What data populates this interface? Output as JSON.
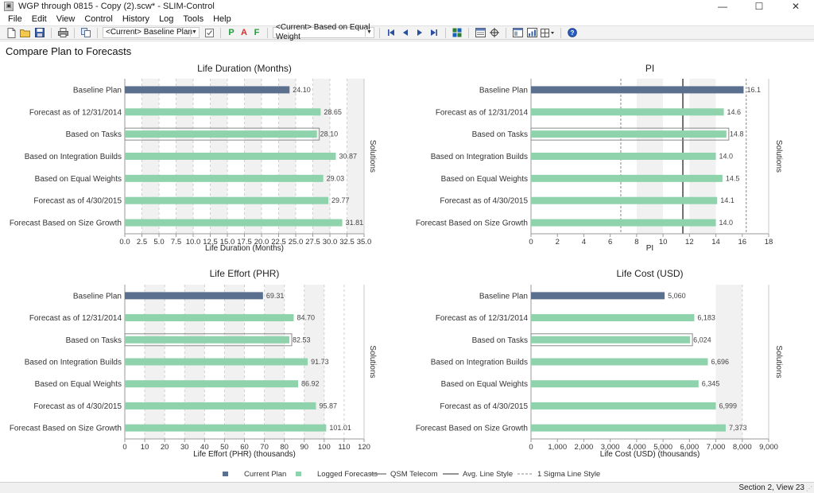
{
  "window": {
    "title": "WGP through 0815 - Copy (2).scw* - SLIM-Control",
    "minimize_glyph": "—",
    "maximize_glyph": "☐",
    "close_glyph": "✕"
  },
  "menu": [
    "File",
    "Edit",
    "View",
    "Control",
    "History",
    "Log",
    "Tools",
    "Help"
  ],
  "toolbar": {
    "baseline_select": "<Current>  Baseline Plan",
    "compare_select": "<Current>  Based on Equal Weight",
    "letters": [
      {
        "text": "P",
        "color": "#1f9e3a"
      },
      {
        "text": "A",
        "color": "#d32f2f"
      },
      {
        "text": "F",
        "color": "#1f9e3a"
      }
    ]
  },
  "page_title": "Compare Plan to Forecasts",
  "side_label": "Solutions",
  "legend": [
    {
      "label": "Current Plan",
      "kind": "square",
      "color": "#5b6f8f"
    },
    {
      "label": "Logged Forecasts",
      "kind": "square",
      "color": "#8fd3ad"
    },
    {
      "label": "QSM Telecom",
      "kind": "line",
      "color": "#8a8a8a"
    },
    {
      "label": "Avg. Line Style",
      "kind": "line",
      "color": "#707070"
    },
    {
      "label": "1 Sigma Line Style",
      "kind": "dash",
      "color": "#888888"
    }
  ],
  "colors": {
    "current_plan": "#5b6f8f",
    "logged_forecast": "#8fd3ad",
    "highlight_border": "#8a8a8a"
  },
  "chart_data": [
    {
      "type": "bar",
      "orientation": "horizontal",
      "title": "Life Duration (Months)",
      "xlabel": "Life Duration (Months)",
      "categories": [
        "Baseline Plan",
        "Forecast as of 12/31/2014",
        "Based on Tasks",
        "Based on Integration Builds",
        "Based on Equal Weights",
        "Forecast as of 4/30/2015",
        "Forecast Based on Size Growth"
      ],
      "values": [
        24.1,
        28.65,
        28.1,
        30.87,
        29.03,
        29.77,
        31.81
      ],
      "value_labels": [
        "24.10",
        "28.65",
        "28.10",
        "30.87",
        "29.03",
        "29.77",
        "31.81"
      ],
      "xlim": [
        0,
        35
      ],
      "ticks": [
        0,
        2.5,
        5,
        7.5,
        10,
        12.5,
        15,
        17.5,
        20,
        22.5,
        25,
        27.5,
        30,
        32.5,
        35
      ],
      "tick_labels": [
        "0.0",
        "2.5",
        "5.0",
        "7.5",
        "10.0",
        "12.5",
        "15.0",
        "17.5",
        "20.0",
        "22.5",
        "25.0",
        "27.5",
        "30.0",
        "32.5",
        "35.0"
      ],
      "current_plan_index": 0,
      "highlight_index": 2,
      "avg_line": null,
      "sigma_lines": [],
      "shade_bands": [
        [
          2.5,
          5
        ],
        [
          7.5,
          10
        ],
        [
          12.5,
          15
        ],
        [
          17.5,
          20
        ],
        [
          22.5,
          25
        ],
        [
          27.5,
          30
        ],
        [
          32.5,
          35
        ]
      ],
      "dash_lines": [
        2.5,
        5,
        7.5,
        10,
        12.5,
        15,
        17.5,
        20,
        22.5,
        25,
        27.5,
        30,
        32.5
      ]
    },
    {
      "type": "bar",
      "orientation": "horizontal",
      "title": "PI",
      "xlabel": "PI",
      "categories": [
        "Baseline Plan",
        "Forecast as of 12/31/2014",
        "Based on Tasks",
        "Based on Integration Builds",
        "Based on Equal Weights",
        "Forecast as of 4/30/2015",
        "Forecast Based on Size Growth"
      ],
      "values": [
        16.1,
        14.6,
        14.8,
        14.0,
        14.5,
        14.1,
        14.0
      ],
      "value_labels": [
        "16.1",
        "14.6",
        "14.8",
        "14.0",
        "14.5",
        "14.1",
        "14.0"
      ],
      "xlim": [
        0,
        18
      ],
      "ticks": [
        0,
        2,
        4,
        6,
        8,
        10,
        12,
        14,
        16,
        18
      ],
      "tick_labels": [
        "0",
        "2",
        "4",
        "6",
        "8",
        "10",
        "12",
        "14",
        "16",
        "18"
      ],
      "current_plan_index": 0,
      "highlight_index": 2,
      "avg_line": 11.5,
      "sigma_lines": [
        6.8,
        16.3
      ],
      "shade_bands": [
        [
          8,
          10
        ],
        [
          12,
          14
        ]
      ],
      "dash_lines": []
    },
    {
      "type": "bar",
      "orientation": "horizontal",
      "title": "Life Effort (PHR)",
      "xlabel": "Life Effort (PHR) (thousands)",
      "categories": [
        "Baseline Plan",
        "Forecast as of 12/31/2014",
        "Based on Tasks",
        "Based on Integration Builds",
        "Based on Equal Weights",
        "Forecast as of 4/30/2015",
        "Forecast Based on Size Growth"
      ],
      "values": [
        69.31,
        84.7,
        82.53,
        91.73,
        86.92,
        95.87,
        101.01
      ],
      "value_labels": [
        "69.31",
        "84.70",
        "82.53",
        "91.73",
        "86.92",
        "95.87",
        "101.01"
      ],
      "xlim": [
        0,
        120
      ],
      "ticks": [
        0,
        10,
        20,
        30,
        40,
        50,
        60,
        70,
        80,
        90,
        100,
        110,
        120
      ],
      "tick_labels": [
        "0",
        "10",
        "20",
        "30",
        "40",
        "50",
        "60",
        "70",
        "80",
        "90",
        "100",
        "110",
        "120"
      ],
      "current_plan_index": 0,
      "highlight_index": 2,
      "avg_line": null,
      "sigma_lines": [],
      "shade_bands": [
        [
          10,
          20
        ],
        [
          30,
          40
        ],
        [
          50,
          60
        ],
        [
          70,
          80
        ],
        [
          90,
          100
        ]
      ],
      "dash_lines": [
        10,
        20,
        30,
        40,
        50,
        60,
        70,
        80,
        90,
        100,
        110
      ]
    },
    {
      "type": "bar",
      "orientation": "horizontal",
      "title": "Life Cost (USD)",
      "xlabel": "Life Cost (USD) (thousands)",
      "categories": [
        "Baseline Plan",
        "Forecast as of 12/31/2014",
        "Based on Tasks",
        "Based on Integration Builds",
        "Based on Equal Weights",
        "Forecast as of 4/30/2015",
        "Forecast Based on Size Growth"
      ],
      "values": [
        5060,
        6183,
        6024,
        6696,
        6345,
        6999,
        7373
      ],
      "value_labels": [
        "5,060",
        "6,183",
        "6,024",
        "6,696",
        "6,345",
        "6,999",
        "7,373"
      ],
      "xlim": [
        0,
        9000
      ],
      "ticks": [
        0,
        1000,
        2000,
        3000,
        4000,
        5000,
        6000,
        7000,
        8000,
        9000
      ],
      "tick_labels": [
        "0",
        "1,000",
        "2,000",
        "3,000",
        "4,000",
        "5,000",
        "6,000",
        "7,000",
        "8,000",
        "9,000"
      ],
      "current_plan_index": 0,
      "highlight_index": 2,
      "avg_line": null,
      "sigma_lines": [],
      "shade_bands": [
        [
          7000,
          8000
        ]
      ],
      "dash_lines": [
        8000
      ]
    }
  ],
  "status": "Section 2, View 23"
}
